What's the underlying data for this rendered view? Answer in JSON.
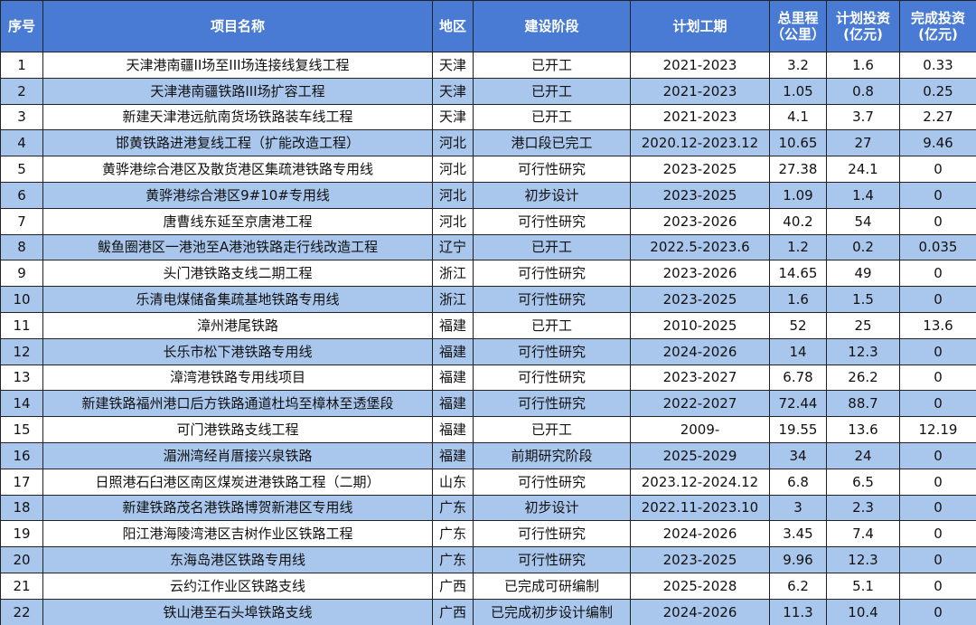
{
  "table": {
    "header": [
      [
        "序号"
      ],
      [
        "项目名称"
      ],
      [
        "地区"
      ],
      [
        "建设阶段"
      ],
      [
        "计划工期"
      ],
      [
        "总里程",
        "（公里）"
      ],
      [
        "计划投资",
        "(亿元)"
      ],
      [
        "完成投资",
        "(亿元)"
      ]
    ],
    "rows": [
      [
        "1",
        "天津港南疆II场至III场连接线复线工程",
        "天津",
        "已开工",
        "2021-2023",
        "3.2",
        "1.6",
        "0.33"
      ],
      [
        "2",
        "天津港南疆铁路III场扩容工程",
        "天津",
        "已开工",
        "2021-2023",
        "1.05",
        "0.8",
        "0.25"
      ],
      [
        "3",
        "新建天津港远航南货场铁路装车线工程",
        "天津",
        "已开工",
        "2021-2023",
        "4.1",
        "3.7",
        "2.27"
      ],
      [
        "4",
        "邯黄铁路进港复线工程（扩能改造工程）",
        "河北",
        "港口段已完工",
        "2020.12-2023.12",
        "10.65",
        "27",
        "9.46"
      ],
      [
        "5",
        "黄骅港综合港区及散货港区集疏港铁路专用线",
        "河北",
        "可行性研究",
        "2023-2025",
        "27.38",
        "24.1",
        "0"
      ],
      [
        "6",
        "黄骅港综合港区9#10#专用线",
        "河北",
        "初步设计",
        "2023-2025",
        "1.09",
        "1.4",
        "0"
      ],
      [
        "7",
        "唐曹线东延至京唐港工程",
        "河北",
        "可行性研究",
        "2023-2026",
        "40.2",
        "54",
        "0"
      ],
      [
        "8",
        "鲅鱼圈港区一港池至A港池铁路走行线改造工程",
        "辽宁",
        "已开工",
        "2022.5-2023.6",
        "1.2",
        "0.2",
        "0.035"
      ],
      [
        "9",
        "头门港铁路支线二期工程",
        "浙江",
        "可行性研究",
        "2023-2026",
        "14.65",
        "49",
        "0"
      ],
      [
        "10",
        "乐清电煤储备集疏基地铁路专用线",
        "浙江",
        "可行性研究",
        "2023-2025",
        "1.6",
        "1.5",
        "0"
      ],
      [
        "11",
        "漳州港尾铁路",
        "福建",
        "已开工",
        "2010-2025",
        "52",
        "25",
        "13.6"
      ],
      [
        "12",
        "长乐市松下港铁路专用线",
        "福建",
        "可行性研究",
        "2024-2026",
        "14",
        "12.3",
        "0"
      ],
      [
        "13",
        "漳湾港铁路专用线项目",
        "福建",
        "可行性研究",
        "2023-2027",
        "6.78",
        "26.2",
        "0"
      ],
      [
        "14",
        "新建铁路福州港口后方铁路通道杜坞至樟林至透堡段",
        "福建",
        "可行性研究",
        "2022-2027",
        "72.44",
        "88.7",
        "0"
      ],
      [
        "15",
        "可门港铁路支线工程",
        "福建",
        "已开工",
        "2009-",
        "19.55",
        "13.6",
        "12.19"
      ],
      [
        "16",
        "湄洲湾经肖厝接兴泉铁路",
        "福建",
        "前期研究阶段",
        "2025-2029",
        "34",
        "24",
        "0"
      ],
      [
        "17",
        "日照港石臼港区南区煤炭进港铁路工程（二期）",
        "山东",
        "可行性研究",
        "2023.12-2024.12",
        "6.8",
        "6.5",
        "0"
      ],
      [
        "18",
        "新建铁路茂名港铁路博贺新港区专用线",
        "广东",
        "初步设计",
        "2022.11-2023.10",
        "3",
        "2.3",
        "0"
      ],
      [
        "19",
        "阳江港海陵湾港区吉树作业区铁路工程",
        "广东",
        "可行性研究",
        "2024-2026",
        "3.45",
        "7.4",
        "0"
      ],
      [
        "20",
        "东海岛港区铁路专用线",
        "广东",
        "可行性研究",
        "2023-2025",
        "9.96",
        "12.3",
        "0"
      ],
      [
        "21",
        "云约江作业区铁路支线",
        "广西",
        "已完成可研编制",
        "2025-2028",
        "6.2",
        "5.1",
        "0"
      ],
      [
        "22",
        "铁山港至石头埠铁路支线",
        "广西",
        "已完成初步设计编制",
        "2024-2026",
        "11.3",
        "10.4",
        "0"
      ]
    ]
  }
}
